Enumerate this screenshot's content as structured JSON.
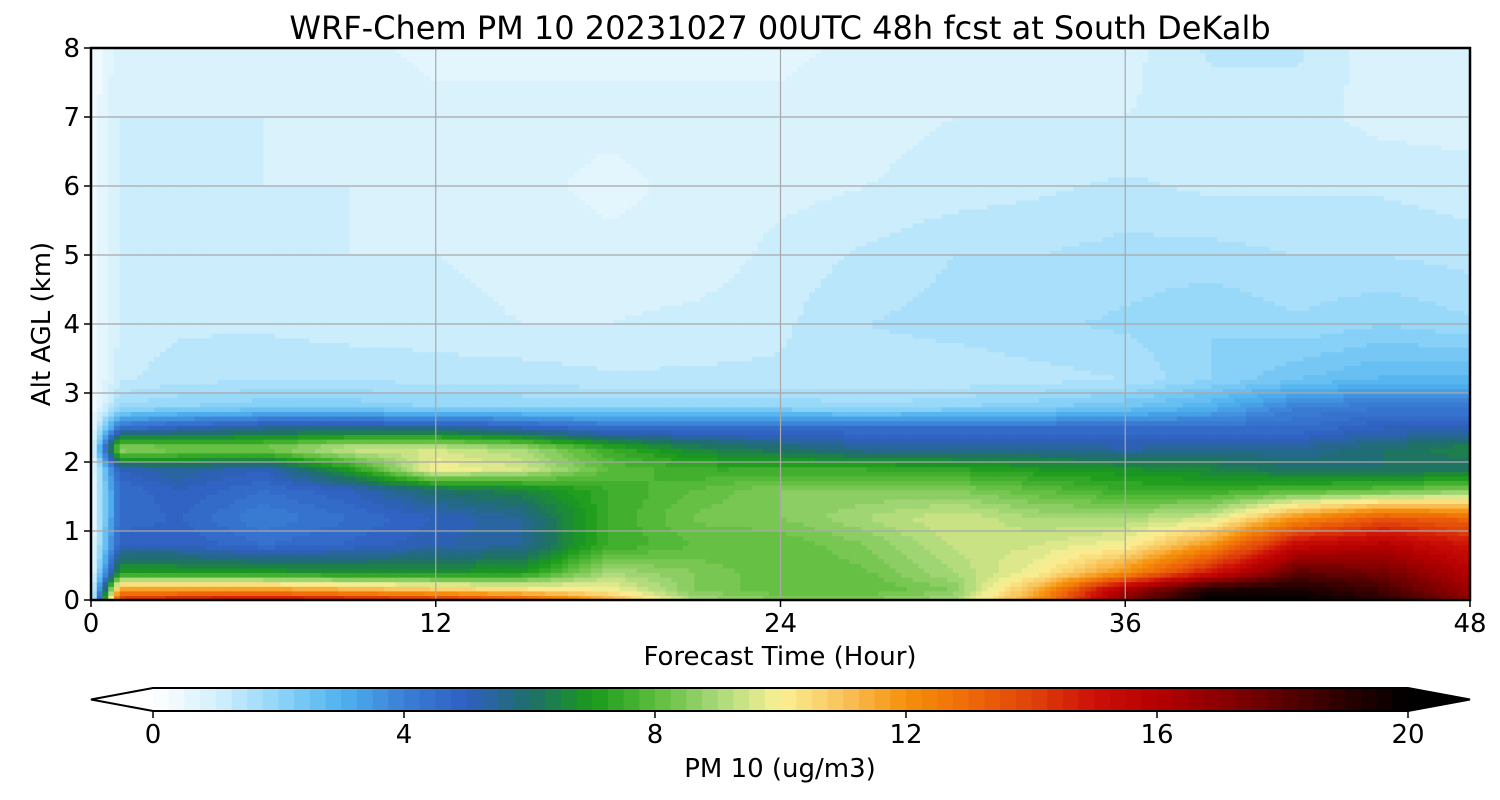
{
  "chart_data": {
    "type": "heatmap",
    "title": "WRF-Chem PM 10  20231027 00UTC 48h fcst at South DeKalb",
    "xlabel": "Forecast Time (Hour)",
    "ylabel": "Alt AGL (km)",
    "xlim": [
      0,
      48
    ],
    "ylim": [
      0,
      8
    ],
    "x_ticks": [
      0,
      12,
      24,
      36,
      48
    ],
    "x_tick_labels": [
      "0",
      "12",
      "24",
      "36",
      "48"
    ],
    "y_ticks": [
      0,
      1,
      2,
      3,
      4,
      5,
      6,
      7,
      8
    ],
    "y_tick_labels": [
      "0",
      "1",
      "2",
      "3",
      "4",
      "5",
      "6",
      "7",
      "8"
    ],
    "grid": true,
    "x": [
      0,
      1,
      3,
      6,
      9,
      12,
      15,
      18,
      21,
      24,
      27,
      30,
      33,
      36,
      39,
      42,
      45,
      48
    ],
    "y": [
      0,
      0.15,
      0.4,
      0.8,
      1.2,
      1.6,
      1.9,
      2.2,
      2.5,
      2.8,
      3.2,
      4,
      5,
      6,
      7,
      8
    ],
    "z": [
      [
        0.3,
        14.5,
        15,
        15.5,
        15,
        14.5,
        13.5,
        11.5,
        9,
        8.5,
        8.5,
        9,
        12,
        17,
        20,
        20,
        19,
        17
      ],
      [
        0.3,
        12,
        12,
        12,
        11.5,
        11,
        10.5,
        10,
        8.5,
        8,
        8,
        8.5,
        11.5,
        16.5,
        19.5,
        19.5,
        18.5,
        16.5
      ],
      [
        0.3,
        7,
        7,
        7,
        6.8,
        6.8,
        7,
        9,
        8.5,
        8,
        8.2,
        9,
        10,
        12,
        15,
        18,
        17.5,
        16
      ],
      [
        0.3,
        5,
        5,
        4.5,
        4.8,
        5.2,
        5.5,
        7.5,
        8,
        8,
        8.5,
        9.3,
        9.5,
        10,
        12,
        15.5,
        16,
        15
      ],
      [
        0.3,
        4.5,
        4.8,
        4,
        4.5,
        5,
        5.5,
        7.5,
        8.3,
        8.5,
        9,
        9.5,
        9,
        9,
        9.5,
        12,
        13.5,
        13
      ],
      [
        0.3,
        4.5,
        5,
        4.5,
        5,
        6,
        6.5,
        7.5,
        8,
        8.5,
        8.5,
        8.5,
        8,
        7.5,
        7.5,
        7.8,
        8,
        8.5
      ],
      [
        0.3,
        5,
        5.5,
        5,
        7,
        10,
        9.5,
        8,
        7.5,
        7.5,
        7.5,
        7.3,
        7,
        6.8,
        6.5,
        6,
        6,
        6
      ],
      [
        0.3,
        9,
        8.5,
        8.5,
        9.5,
        9.5,
        9,
        7.5,
        6.5,
        6,
        5.5,
        5.5,
        5.5,
        5.3,
        5.5,
        5.5,
        6,
        6.5
      ],
      [
        0.3,
        4.5,
        5,
        5.5,
        5.5,
        5.5,
        5,
        4.5,
        4.5,
        4.5,
        4.5,
        4.5,
        4.5,
        4.5,
        4.5,
        4.5,
        5,
        5
      ],
      [
        0.3,
        1.8,
        2,
        2.2,
        2.2,
        2,
        2,
        2,
        2,
        2,
        1.8,
        2,
        2.2,
        2.5,
        3,
        4,
        4.2,
        4.2
      ],
      [
        0.3,
        1.2,
        1.4,
        1.5,
        1.5,
        1.4,
        1.4,
        1.3,
        1.3,
        1.3,
        1.3,
        1.3,
        1.4,
        1.5,
        2,
        2.5,
        2.8,
        2.8
      ],
      [
        0.3,
        1,
        1.2,
        1.2,
        1.1,
        1.1,
        1,
        1,
        1.1,
        1.2,
        1.5,
        1.6,
        1.7,
        1.8,
        2,
        1.8,
        2,
        1.8
      ],
      [
        0.3,
        1,
        1.1,
        1.1,
        1,
        1,
        0.9,
        0.8,
        0.8,
        1.1,
        1.3,
        1.5,
        1.5,
        1.6,
        1.6,
        1.5,
        1.5,
        1.4
      ],
      [
        0.3,
        1,
        1.1,
        1,
        1,
        0.9,
        0.8,
        0.7,
        0.8,
        0.9,
        1,
        1.1,
        1.2,
        1.3,
        1.2,
        1.2,
        1.2,
        1.1
      ],
      [
        0.3,
        1,
        1,
        1,
        0.9,
        0.8,
        0.8,
        0.8,
        0.8,
        0.8,
        0.9,
        1,
        1,
        1,
        1.1,
        1.1,
        0.9,
        0.9
      ],
      [
        0.3,
        0.9,
        0.9,
        0.8,
        0.8,
        0.7,
        0.7,
        0.7,
        0.7,
        0.7,
        0.8,
        0.8,
        0.9,
        0.9,
        1.3,
        1.3,
        0.8,
        0.8
      ]
    ],
    "colorbar": {
      "label": "PM 10  (ug/m3)",
      "min": 0,
      "max": 20,
      "ticks": [
        0,
        4,
        8,
        12,
        16,
        20
      ],
      "tick_labels": [
        "0",
        "4",
        "8",
        "12",
        "16",
        "20"
      ],
      "extend": "both",
      "orientation": "horizontal",
      "colormap_stops": [
        [
          0,
          "#ffffff"
        ],
        [
          1,
          "#d4f0fc"
        ],
        [
          2,
          "#8fd4f8"
        ],
        [
          3,
          "#4fb2ef"
        ],
        [
          4,
          "#3a7fd6"
        ],
        [
          5,
          "#2f5fc0"
        ],
        [
          6,
          "#1f6f6a"
        ],
        [
          7,
          "#1a9a1a"
        ],
        [
          8,
          "#5cbc3c"
        ],
        [
          9,
          "#a9d97a"
        ],
        [
          10,
          "#fbf195"
        ],
        [
          11,
          "#f9c25a"
        ],
        [
          12,
          "#f5900a"
        ],
        [
          13,
          "#ef6a08"
        ],
        [
          14,
          "#e0420a"
        ],
        [
          15,
          "#cd1008"
        ],
        [
          16,
          "#b50000"
        ],
        [
          17,
          "#8c0000"
        ],
        [
          18,
          "#5a0000"
        ],
        [
          19,
          "#2a0000"
        ],
        [
          20,
          "#000000"
        ]
      ],
      "under_color": "#ffffff",
      "over_color": "#000000"
    }
  }
}
